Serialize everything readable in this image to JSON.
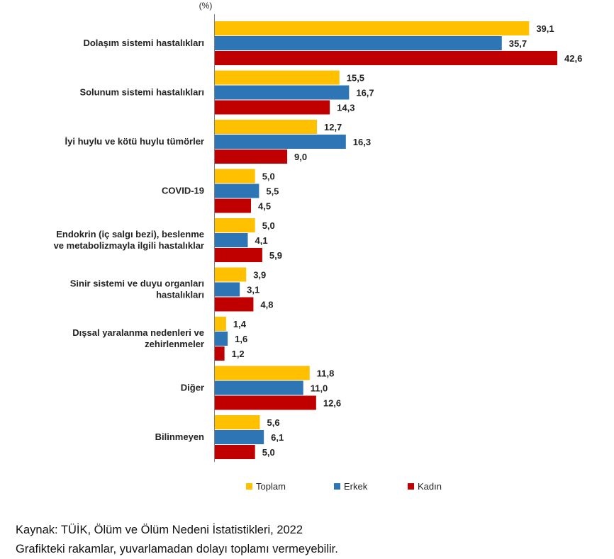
{
  "chart_data": {
    "type": "bar",
    "orientation": "horizontal",
    "unit_label": "(%)",
    "categories": [
      [
        "Dolaşım sistemi hastalıkları"
      ],
      [
        "Solunum sistemi hastalıkları"
      ],
      [
        "İyi huylu ve kötü huylu tümörler"
      ],
      [
        "COVID-19"
      ],
      [
        "Endokrin (iç salgı bezi), beslenme",
        "ve metabolizmayla ilgili hastalıklar"
      ],
      [
        "Sinir sistemi ve duyu organları",
        "hastalıkları"
      ],
      [
        "Dışsal yaralanma nedenleri ve",
        "zehirlenmeler"
      ],
      [
        "Diğer"
      ],
      [
        "Bilinmeyen"
      ]
    ],
    "series": [
      {
        "name": "Toplam",
        "color": "#FFC000",
        "values": [
          39.1,
          15.5,
          12.7,
          5.0,
          5.0,
          3.9,
          1.4,
          11.8,
          5.6
        ],
        "labels": [
          "39,1",
          "15,5",
          "12,7",
          "5,0",
          "5,0",
          "3,9",
          "1,4",
          "11,8",
          "5,6"
        ]
      },
      {
        "name": "Erkek",
        "color": "#2E75B6",
        "values": [
          35.7,
          16.7,
          16.3,
          5.5,
          4.1,
          3.1,
          1.6,
          11.0,
          6.1
        ],
        "labels": [
          "35,7",
          "16,7",
          "16,3",
          "5,5",
          "4,1",
          "3,1",
          "1,6",
          "11,0",
          "6,1"
        ]
      },
      {
        "name": "Kadın",
        "color": "#C00000",
        "values": [
          42.6,
          14.3,
          9.0,
          4.5,
          5.9,
          4.8,
          1.2,
          12.6,
          5.0
        ],
        "labels": [
          "42,6",
          "14,3",
          "9,0",
          "4,5",
          "5,9",
          "4,8",
          "1,2",
          "12,6",
          "5,0"
        ]
      }
    ],
    "xlim": [
      0,
      45
    ],
    "grid": false,
    "legend_position": "bottom"
  },
  "notes": {
    "source": "Kaynak: TÜİK, Ölüm ve Ölüm Nedeni İstatistikleri, 2022",
    "rounding": "Grafikteki rakamlar, yuvarlamadan dolayı toplamı vermeyebilir."
  }
}
